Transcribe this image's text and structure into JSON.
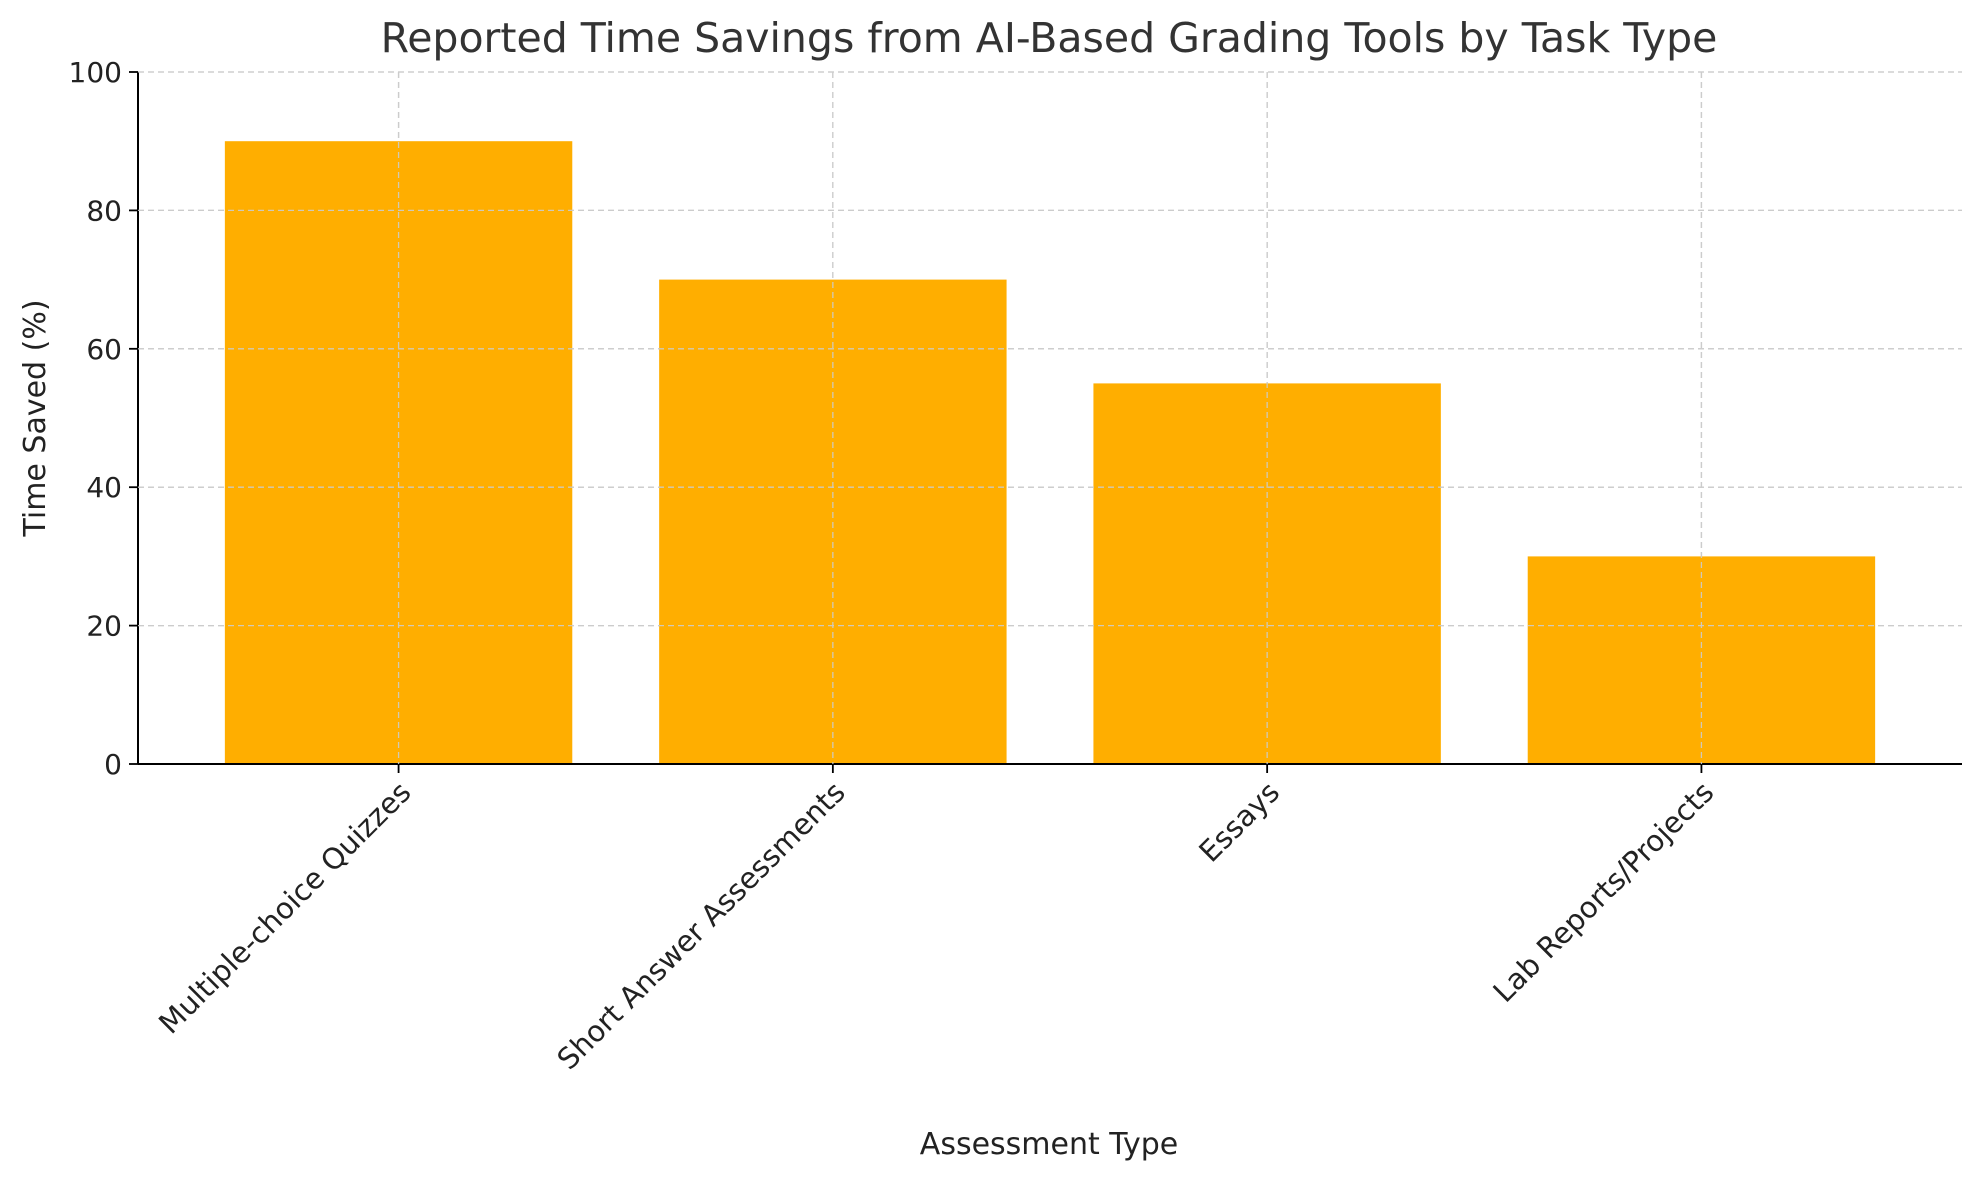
{
  "chart_data": {
    "type": "bar",
    "title": "Reported Time Savings from AI-Based Grading Tools by Task Type",
    "xlabel": "Assessment Type",
    "ylabel": "Time Saved (%)",
    "categories": [
      "Multiple-choice Quizzes",
      "Short Answer Assessments",
      "Essays",
      "Lab Reports/Projects"
    ],
    "values": [
      90,
      70,
      55,
      30
    ],
    "ylim": [
      0,
      100
    ],
    "yticks": [
      0,
      20,
      40,
      60,
      80,
      100
    ],
    "grid": true,
    "grid_style": "dashed",
    "bar_color": "#FFAE00",
    "text_color": "#333333",
    "axis_color": "#000000",
    "grid_color": "#cccccc"
  }
}
